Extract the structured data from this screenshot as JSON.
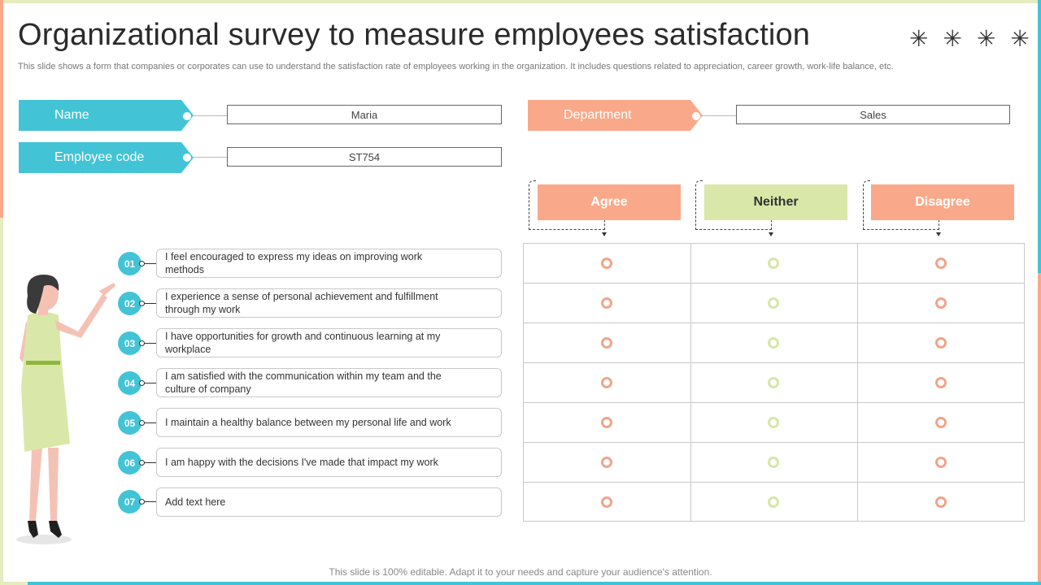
{
  "header": {
    "title": "Organizational survey to measure employees satisfaction",
    "subtitle": "This slide shows a form that companies or corporates can use to understand the satisfaction rate of employees working in the organization. It includes questions related to appreciation, career growth, work-life balance, etc.",
    "decoration_icons": [
      "asterisk-icon",
      "asterisk-icon",
      "asterisk-icon",
      "asterisk-icon"
    ]
  },
  "form": {
    "name_label": "Name",
    "name_value": "Maria",
    "employee_code_label": "Employee code",
    "employee_code_value": "ST754",
    "department_label": "Department",
    "department_value": "Sales"
  },
  "columns": [
    {
      "label": "Agree",
      "bg": "#f9a98a",
      "text_color": "#ffffff"
    },
    {
      "label": "Neither",
      "bg": "#d9e8a8",
      "text_color": "#333333"
    },
    {
      "label": "Disagree",
      "bg": "#f9a98a",
      "text_color": "#ffffff"
    }
  ],
  "questions": [
    {
      "num": "01",
      "text": "I feel encouraged  to express  my ideas on  improving  work  methods"
    },
    {
      "num": "02",
      "text": "I experience  a  sense of personal  achievement  and fulfillment through  my work"
    },
    {
      "num": "03",
      "text": "I have  opportunities  for growth  and continuous  learning  at my workplace"
    },
    {
      "num": "04",
      "text": "I am satisfied with the communication within my team and the culture of company"
    },
    {
      "num": "05",
      "text": "I maintain  a healthy balance  between  my personal life and work"
    },
    {
      "num": "06",
      "text": "I am happy with the decisions I've  made that impact my work"
    },
    {
      "num": "07",
      "text": "Add text here"
    }
  ],
  "footer": "This slide is 100% editable. Adapt it to your needs and capture your audience's attention.",
  "colors": {
    "teal": "#42c4d6",
    "salmon": "#f9a98a",
    "green": "#d9e8a8",
    "radio_salmon": "#f0a48a",
    "radio_green": "#d6e6a8"
  }
}
